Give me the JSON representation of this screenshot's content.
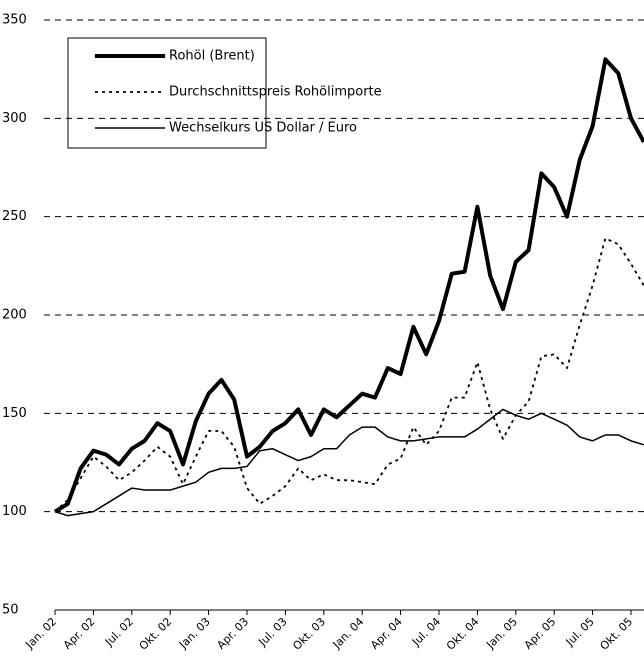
{
  "chart_data": {
    "type": "line",
    "categories": [
      "Jan. 02",
      null,
      null,
      "Apr. 02",
      null,
      null,
      "Jul. 02",
      null,
      null,
      "Okt. 02",
      null,
      null,
      "Jan. 03",
      null,
      null,
      "Apr. 03",
      null,
      null,
      "Jul. 03",
      null,
      null,
      "Okt. 03",
      null,
      null,
      "Jan. 04",
      null,
      null,
      "Apr. 04",
      null,
      null,
      "Jul. 04",
      null,
      null,
      "Okt. 04",
      null,
      null,
      "Jan. 05",
      null,
      null,
      "Apr. 05",
      null,
      null,
      "Jul. 05",
      null,
      null,
      "Okt. 05",
      null
    ],
    "series": [
      {
        "name": "Rohöl (Brent)",
        "color": "#000000",
        "style": "thick",
        "values": [
          100,
          104,
          122,
          131,
          129,
          124,
          132,
          136,
          145,
          141,
          124,
          146,
          160,
          167,
          157,
          128,
          133,
          141,
          145,
          152,
          139,
          152,
          148,
          154,
          160,
          158,
          173,
          170,
          194,
          180,
          197,
          221,
          222,
          255,
          220,
          203,
          227,
          233,
          272,
          265,
          250,
          279,
          296,
          330,
          323,
          300,
          288
        ]
      },
      {
        "name": "Durchschnittspreis Rohölimporte",
        "color": "#000000",
        "style": "dotted",
        "values": [
          100,
          106,
          117,
          128,
          123,
          116,
          120,
          126,
          133,
          128,
          114,
          128,
          141,
          141,
          133,
          112,
          104,
          108,
          113,
          122,
          116,
          119,
          116,
          116,
          115,
          114,
          124,
          127,
          143,
          134,
          141,
          158,
          158,
          176,
          152,
          137,
          149,
          156,
          179,
          180,
          173,
          195,
          215,
          239,
          236,
          226,
          215
        ]
      },
      {
        "name": "Wechselkurs US Dollar / Euro",
        "color": "#000000",
        "style": "thin",
        "values": [
          100,
          98,
          99,
          100,
          104,
          108,
          112,
          111,
          111,
          111,
          113,
          115,
          120,
          122,
          122,
          123,
          131,
          132,
          129,
          126,
          128,
          132,
          132,
          139,
          143,
          143,
          138,
          136,
          136,
          137,
          138,
          138,
          138,
          142,
          147,
          152,
          149,
          147,
          150,
          147,
          144,
          138,
          136,
          139,
          139,
          136,
          134
        ]
      }
    ],
    "ylim": [
      50,
      350
    ],
    "yticks": [
      50,
      100,
      150,
      200,
      250,
      300,
      350
    ],
    "grid": true
  }
}
